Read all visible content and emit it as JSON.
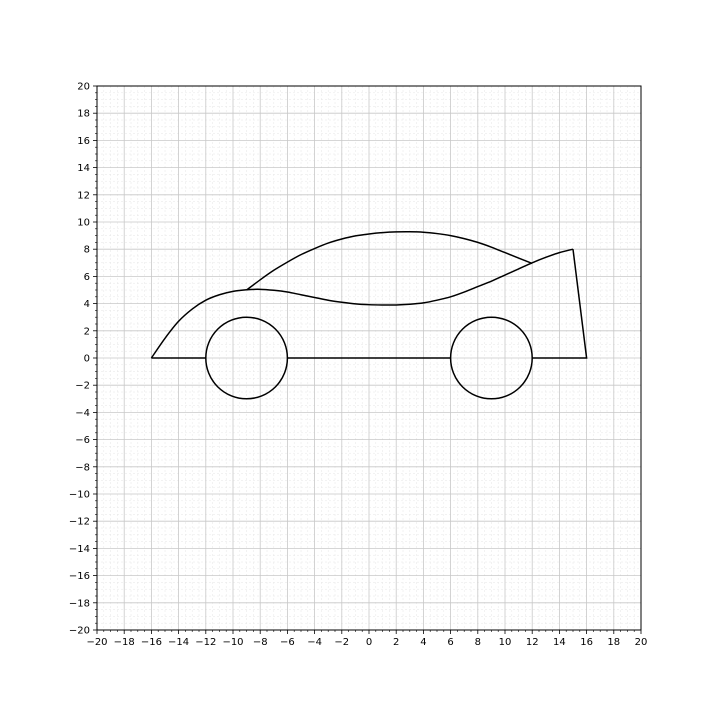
{
  "chart_data": {
    "type": "line",
    "title": "",
    "xlabel": "",
    "ylabel": "",
    "xlim": [
      -20,
      20
    ],
    "ylim": [
      -20,
      20
    ],
    "major_tick_step": 2,
    "minor_tick_step": 0.5,
    "grid": {
      "major": true,
      "minor": true
    },
    "line_color": "#000000",
    "grid_major_color": "#c8c8c8",
    "grid_minor_color": "#e6e6e6",
    "x_tick_labels": [
      "−20",
      "−18",
      "−16",
      "−14",
      "−12",
      "−10",
      "−8",
      "−6",
      "−4",
      "−2",
      "0",
      "2",
      "4",
      "6",
      "8",
      "10",
      "12",
      "14",
      "16",
      "18",
      "20"
    ],
    "y_tick_labels": [
      "−20",
      "−18",
      "−16",
      "−14",
      "−12",
      "−10",
      "−8",
      "−6",
      "−4",
      "−2",
      "0",
      "2",
      "4",
      "6",
      "8",
      "10",
      "12",
      "14",
      "16",
      "18",
      "20"
    ],
    "series": [
      {
        "kind": "curve",
        "points": [
          [
            -16,
            0
          ],
          [
            -15,
            1.45
          ],
          [
            -14,
            2.7
          ],
          [
            -13,
            3.6
          ],
          [
            -12,
            4.25
          ],
          [
            -11,
            4.65
          ],
          [
            -10,
            4.9
          ],
          [
            -9,
            5.02
          ],
          [
            -8,
            5.05
          ],
          [
            -7,
            4.98
          ],
          [
            -6,
            4.85
          ],
          [
            -5,
            4.65
          ],
          [
            -4,
            4.45
          ],
          [
            -3,
            4.25
          ],
          [
            -2,
            4.1
          ],
          [
            -1,
            3.98
          ],
          [
            0,
            3.92
          ],
          [
            1,
            3.9
          ],
          [
            2,
            3.9
          ],
          [
            3,
            3.95
          ],
          [
            4,
            4.05
          ],
          [
            5,
            4.25
          ],
          [
            6,
            4.5
          ],
          [
            7,
            4.85
          ],
          [
            8,
            5.25
          ],
          [
            9,
            5.65
          ],
          [
            10,
            6.1
          ],
          [
            11,
            6.55
          ],
          [
            12,
            7.0
          ],
          [
            13,
            7.4
          ],
          [
            14,
            7.75
          ],
          [
            15,
            8.0
          ]
        ]
      },
      {
        "kind": "curve",
        "points": [
          [
            -9,
            5.0
          ],
          [
            -8,
            5.75
          ],
          [
            -7,
            6.45
          ],
          [
            -6,
            7.05
          ],
          [
            -5,
            7.6
          ],
          [
            -4,
            8.05
          ],
          [
            -3,
            8.45
          ],
          [
            -2,
            8.75
          ],
          [
            -1,
            8.98
          ],
          [
            0,
            9.12
          ],
          [
            1,
            9.22
          ],
          [
            2,
            9.27
          ],
          [
            3,
            9.28
          ],
          [
            4,
            9.25
          ],
          [
            5,
            9.15
          ],
          [
            6,
            9.0
          ],
          [
            7,
            8.78
          ],
          [
            8,
            8.5
          ],
          [
            9,
            8.15
          ],
          [
            10,
            7.75
          ],
          [
            11,
            7.35
          ],
          [
            12,
            6.95
          ]
        ]
      },
      {
        "kind": "polyline",
        "points": [
          [
            15,
            8
          ],
          [
            16,
            0
          ],
          [
            12,
            0
          ]
        ]
      },
      {
        "kind": "polyline",
        "points": [
          [
            -6,
            0
          ],
          [
            6,
            0
          ]
        ]
      },
      {
        "kind": "polyline",
        "points": [
          [
            -16,
            0
          ],
          [
            -12,
            0
          ]
        ]
      },
      {
        "kind": "circle",
        "center": [
          -9,
          0
        ],
        "radius": 3
      },
      {
        "kind": "circle",
        "center": [
          9,
          0
        ],
        "radius": 3
      }
    ]
  }
}
